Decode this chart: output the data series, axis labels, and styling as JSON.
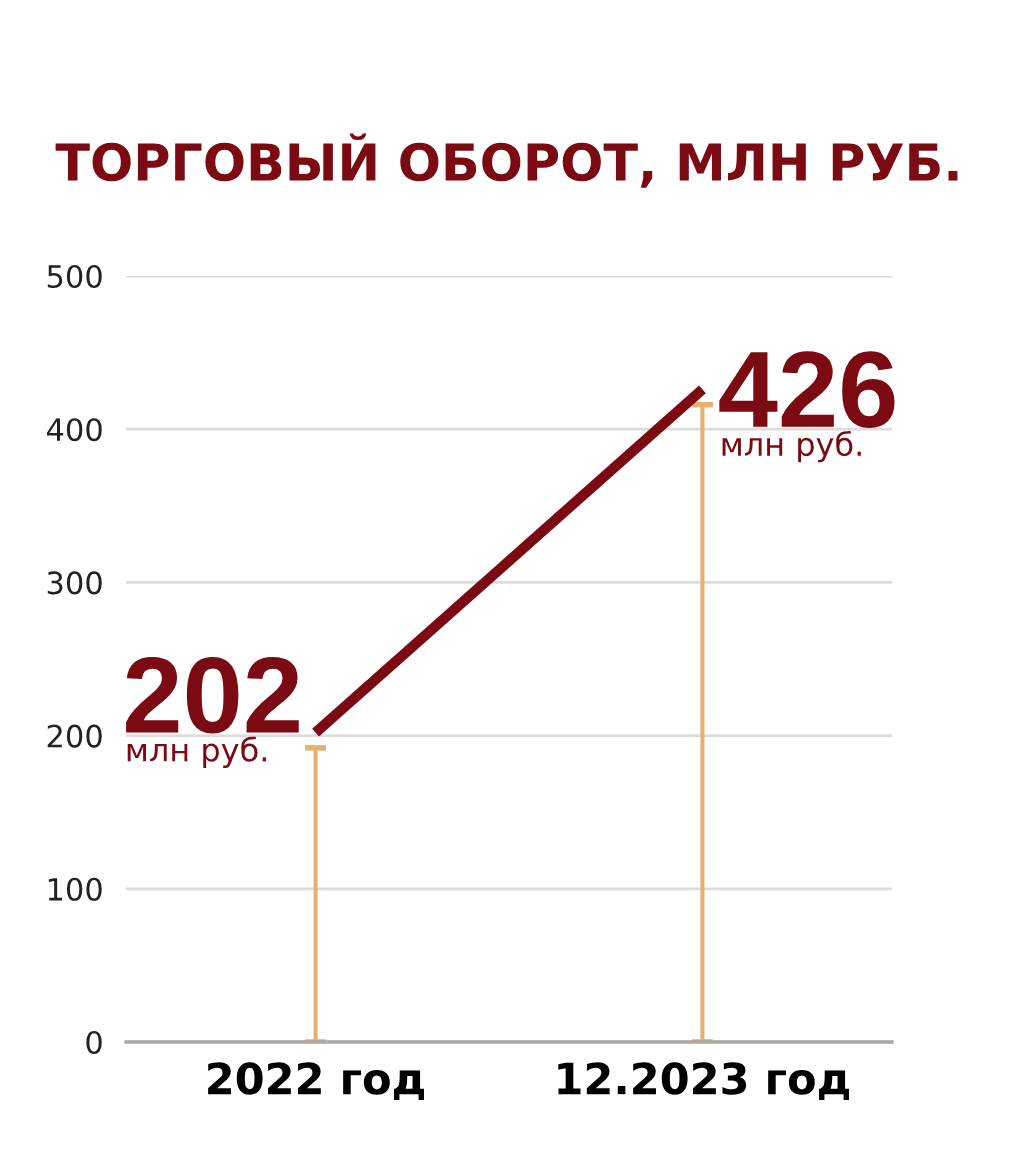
{
  "chart_data": {
    "type": "line",
    "title": "ТОРГОВЫЙ ОБОРОТ, МЛН РУБ.",
    "categories": [
      "2022 год",
      "12.2023 год"
    ],
    "series": [
      {
        "type": "bar",
        "color": "#e6b06e",
        "values": [
          192,
          416
        ]
      },
      {
        "color": "#7b0a12",
        "values": [
          202,
          426
        ],
        "value_labels": [
          "202",
          "426"
        ]
      }
    ],
    "annotations": [
      "млн руб.",
      "млн руб."
    ],
    "ylim": [
      0,
      500
    ],
    "yticks": [
      0,
      100,
      200,
      300,
      400,
      500
    ],
    "grid": "y",
    "line_style": "solid"
  }
}
